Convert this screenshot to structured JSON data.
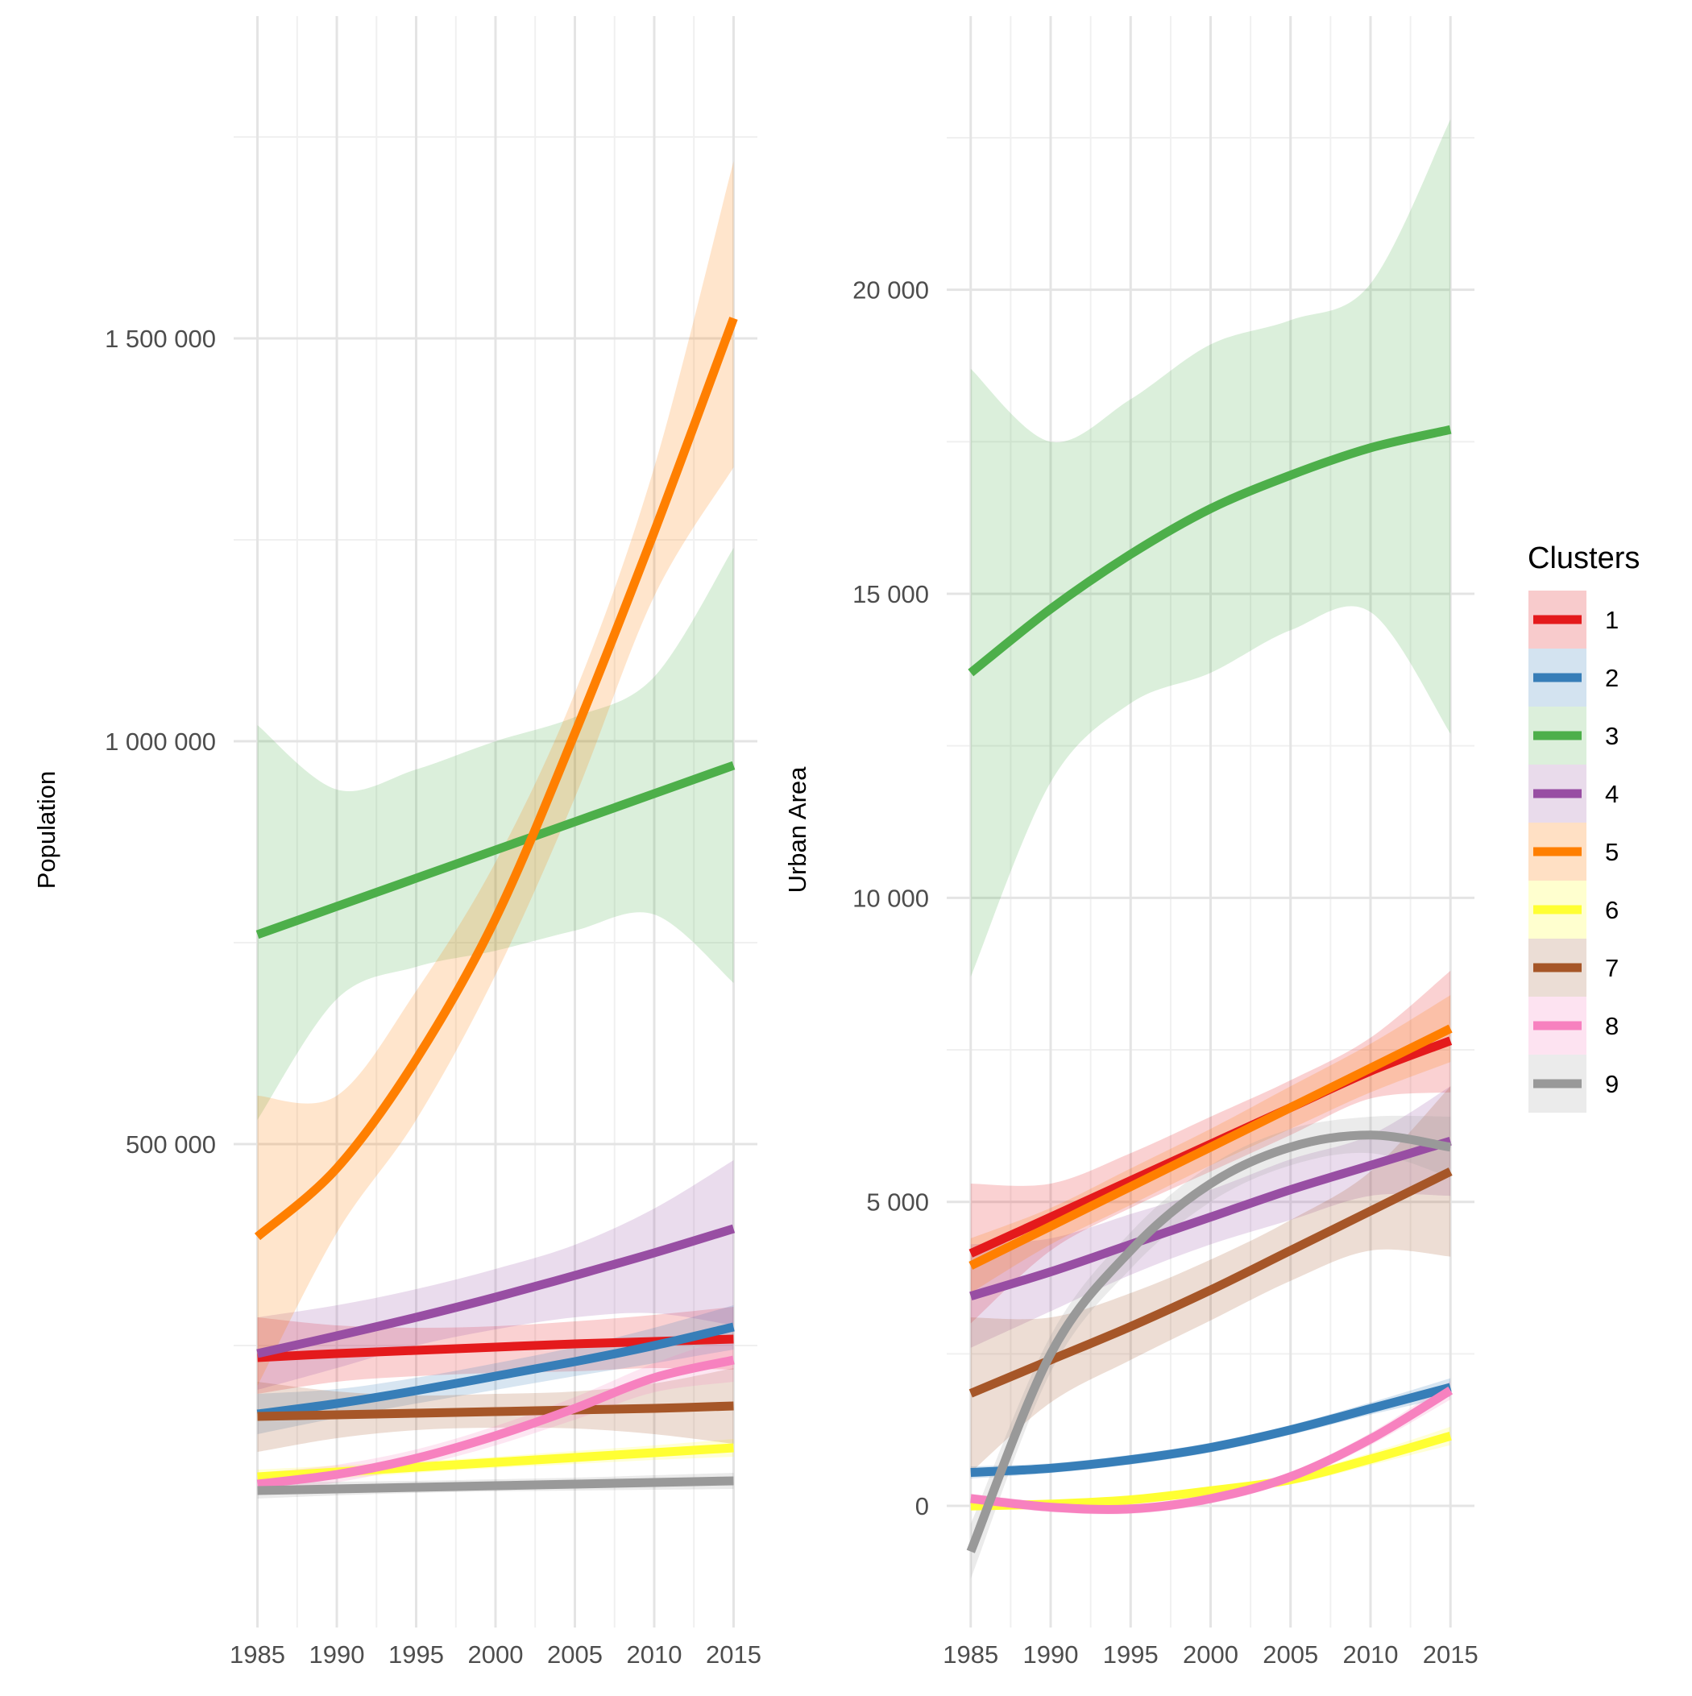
{
  "chart_data": [
    {
      "type": "line",
      "panel": "left",
      "ylabel": "Population",
      "xlabel": "",
      "x_ticks": [
        1985,
        1990,
        1995,
        2000,
        2005,
        2010,
        2015
      ],
      "y_ticks": [
        500000,
        1000000,
        1500000
      ],
      "y_tick_labels": [
        "500 000",
        "1 000 000",
        "1 500 000"
      ],
      "ylim": [
        -100000,
        1900000
      ],
      "xlim": [
        1983.5,
        2016.5
      ],
      "x": [
        1985,
        1990,
        1995,
        2000,
        2005,
        2010,
        2015
      ],
      "grid": true,
      "series": [
        {
          "cluster": "1",
          "values": [
            235000,
            240000,
            244000,
            248000,
            252000,
            255000,
            258000
          ],
          "lower": [
            190000,
            205000,
            212000,
            216000,
            218000,
            222000,
            220000
          ],
          "upper": [
            285000,
            275000,
            272000,
            274000,
            280000,
            288000,
            298000
          ]
        },
        {
          "cluster": "2",
          "values": [
            165000,
            178000,
            194000,
            212000,
            230000,
            250000,
            273000
          ],
          "lower": [
            140000,
            160000,
            178000,
            195000,
            212000,
            228000,
            245000
          ],
          "upper": [
            190000,
            196000,
            210000,
            228000,
            248000,
            272000,
            300000
          ]
        },
        {
          "cluster": "3",
          "values": [
            760000,
            795000,
            830000,
            865000,
            900000,
            935000,
            970000
          ],
          "lower": [
            530000,
            680000,
            720000,
            740000,
            765000,
            785000,
            700000
          ],
          "upper": [
            1020000,
            940000,
            965000,
            1000000,
            1030000,
            1080000,
            1240000
          ]
        },
        {
          "cluster": "4",
          "values": [
            240000,
            262000,
            285000,
            310000,
            337000,
            365000,
            395000
          ],
          "lower": [
            195000,
            222000,
            250000,
            270000,
            285000,
            290000,
            275000
          ],
          "upper": [
            285000,
            300000,
            320000,
            345000,
            375000,
            420000,
            480000
          ]
        },
        {
          "cluster": "5",
          "values": [
            385000,
            470000,
            605000,
            780000,
            1010000,
            1260000,
            1525000
          ],
          "lower": [
            200000,
            390000,
            530000,
            710000,
            930000,
            1180000,
            1340000
          ],
          "upper": [
            560000,
            560000,
            690000,
            850000,
            1060000,
            1340000,
            1720000
          ]
        },
        {
          "cluster": "6",
          "values": [
            87000,
            93000,
            99000,
            105000,
            111000,
            117000,
            123000
          ],
          "lower": [
            78000,
            85000,
            92000,
            98000,
            103000,
            108000,
            112000
          ],
          "upper": [
            96000,
            101000,
            106000,
            112000,
            119000,
            126000,
            134000
          ]
        },
        {
          "cluster": "7",
          "values": [
            162000,
            164000,
            166000,
            168000,
            170000,
            172000,
            175000
          ],
          "lower": [
            118000,
            135000,
            145000,
            148000,
            147000,
            140000,
            128000
          ],
          "upper": [
            205000,
            193000,
            188000,
            190000,
            193000,
            203000,
            222000
          ]
        },
        {
          "cluster": "8",
          "values": [
            78000,
            90000,
            110000,
            138000,
            172000,
            210000,
            232000
          ],
          "lower": [
            65000,
            80000,
            100000,
            126000,
            158000,
            192000,
            205000
          ],
          "upper": [
            92000,
            102000,
            121000,
            150000,
            186000,
            228000,
            262000
          ]
        },
        {
          "cluster": "9",
          "values": [
            70000,
            72000,
            74000,
            76000,
            78000,
            80000,
            82000
          ],
          "lower": [
            60000,
            64000,
            67000,
            69000,
            70000,
            71000,
            72000
          ],
          "upper": [
            80000,
            81000,
            82000,
            84000,
            86000,
            89000,
            92000
          ]
        }
      ]
    },
    {
      "type": "line",
      "panel": "right",
      "ylabel": "Urban Area",
      "xlabel": "",
      "x_ticks": [
        1985,
        1990,
        1995,
        2000,
        2005,
        2010,
        2015
      ],
      "y_ticks": [
        0,
        5000,
        10000,
        15000,
        20000
      ],
      "y_tick_labels": [
        "0",
        "5 000",
        "10 000",
        "15 000",
        "20 000"
      ],
      "ylim": [
        -2000,
        24500
      ],
      "xlim": [
        1983.5,
        2016.5
      ],
      "x": [
        1985,
        1990,
        1995,
        2000,
        2005,
        2010,
        2015
      ],
      "grid": true,
      "series": [
        {
          "cluster": "1",
          "values": [
            4150,
            4750,
            5350,
            5950,
            6550,
            7150,
            7650
          ],
          "lower": [
            3000,
            4200,
            4900,
            5500,
            6100,
            6700,
            6800
          ],
          "upper": [
            5300,
            5300,
            5800,
            6400,
            7000,
            7700,
            8800
          ]
        },
        {
          "cluster": "2",
          "values": [
            550,
            620,
            760,
            960,
            1250,
            1600,
            1950
          ],
          "lower": [
            450,
            540,
            680,
            880,
            1170,
            1500,
            1800
          ],
          "upper": [
            650,
            700,
            840,
            1040,
            1330,
            1700,
            2100
          ]
        },
        {
          "cluster": "3",
          "values": [
            13700,
            14750,
            15650,
            16400,
            16950,
            17400,
            17700
          ],
          "lower": [
            8700,
            11900,
            13200,
            13700,
            14400,
            14700,
            12700
          ],
          "upper": [
            18700,
            17500,
            18200,
            19100,
            19500,
            20100,
            22800
          ]
        },
        {
          "cluster": "4",
          "values": [
            3450,
            3850,
            4300,
            4750,
            5200,
            5600,
            6000
          ],
          "lower": [
            2600,
            3200,
            3800,
            4300,
            4700,
            5100,
            5100
          ],
          "upper": [
            4300,
            4400,
            4800,
            5200,
            5700,
            6100,
            6900
          ]
        },
        {
          "cluster": "5",
          "values": [
            3950,
            4600,
            5250,
            5900,
            6550,
            7200,
            7850
          ],
          "lower": [
            3500,
            4300,
            4950,
            5600,
            6200,
            6800,
            7300
          ],
          "upper": [
            4400,
            4900,
            5550,
            6200,
            6900,
            7600,
            8400
          ]
        },
        {
          "cluster": "6",
          "values": [
            0,
            30,
            100,
            250,
            430,
            770,
            1150
          ],
          "lower": [
            -60,
            -20,
            40,
            180,
            350,
            670,
            1000
          ],
          "upper": [
            60,
            80,
            160,
            320,
            510,
            870,
            1300
          ]
        },
        {
          "cluster": "7",
          "values": [
            1850,
            2400,
            2950,
            3550,
            4200,
            4850,
            5500
          ],
          "lower": [
            550,
            1700,
            2400,
            3050,
            3700,
            4200,
            4100
          ],
          "upper": [
            3100,
            3100,
            3500,
            4050,
            4700,
            5500,
            6900
          ]
        },
        {
          "cluster": "8",
          "values": [
            120,
            -20,
            -50,
            120,
            480,
            1100,
            1900
          ],
          "lower": [
            40,
            -100,
            -130,
            40,
            400,
            1000,
            1750
          ],
          "upper": [
            200,
            60,
            30,
            200,
            560,
            1200,
            2050
          ]
        },
        {
          "cluster": "9",
          "values": [
            -750,
            2500,
            4200,
            5300,
            5900,
            6100,
            5900
          ],
          "lower": [
            -1200,
            2200,
            3900,
            5000,
            5600,
            5800,
            5400
          ],
          "upper": [
            -300,
            2800,
            4500,
            5600,
            6200,
            6400,
            6400
          ]
        }
      ]
    }
  ],
  "legend": {
    "title": "Clusters",
    "position": "right",
    "items": [
      {
        "label": "1",
        "color": "#E41A1C",
        "fill": "#F8CBCC"
      },
      {
        "label": "2",
        "color": "#377EB8",
        "fill": "#D3E3F0"
      },
      {
        "label": "3",
        "color": "#4DAF4A",
        "fill": "#DCEFDB"
      },
      {
        "label": "4",
        "color": "#984EA3",
        "fill": "#E9DBEB"
      },
      {
        "label": "5",
        "color": "#FF7F00",
        "fill": "#FFE0C4"
      },
      {
        "label": "6",
        "color": "#FFFF33",
        "fill": "#FFFFCF"
      },
      {
        "label": "7",
        "color": "#A65628",
        "fill": "#EBDDD5"
      },
      {
        "label": "8",
        "color": "#F781BF",
        "fill": "#FDE3F1"
      },
      {
        "label": "9",
        "color": "#999999",
        "fill": "#EBEBEB"
      }
    ]
  }
}
